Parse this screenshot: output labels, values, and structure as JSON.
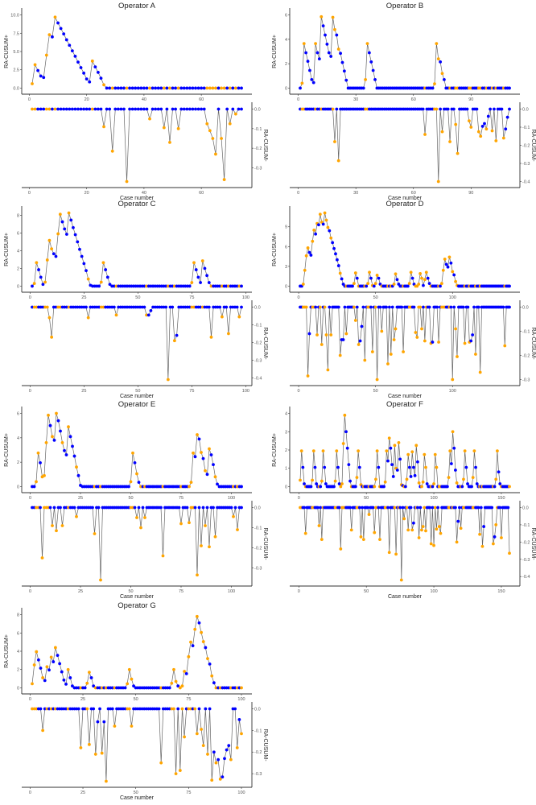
{
  "chart_data": [
    {
      "type": "line",
      "title": "Operator A",
      "xlabel": "Case number",
      "ylabel_upper": "RA-CUSUM+",
      "ylabel_lower": "RA-CUSUM-",
      "n_cases": 74,
      "xticks": [
        0,
        20,
        40,
        60
      ],
      "upper_yticks": [
        "0.0",
        "2.5",
        "5.0",
        "7.5",
        "10.0"
      ],
      "lower_yticks": [
        "0.0",
        "-0.1",
        "-0.2",
        "-0.3"
      ],
      "upper_nonzero": {
        "1": 0.6,
        "2": 3.2,
        "3": 2.4,
        "4": 1.65,
        "5": 1.45,
        "6": 4.5,
        "7": 7.3,
        "8": 7.0,
        "9": 9.7,
        "10": 8.9,
        "11": 8.15,
        "12": 7.4,
        "13": 6.6,
        "14": 5.85,
        "15": 5.1,
        "16": 4.35,
        "17": 3.55,
        "18": 2.8,
        "19": 2.05,
        "20": 1.25,
        "21": 0.85,
        "22": 3.7,
        "23": 2.9,
        "24": 2.15,
        "25": 1.35,
        "26": 0.45
      },
      "lower_nonzero": {
        "26": -0.09,
        "29": -0.215,
        "34": -0.37,
        "42": -0.05,
        "47": -0.095,
        "49": -0.17,
        "52": -0.1,
        "62": -0.075,
        "63": -0.11,
        "64": -0.15,
        "65": -0.23,
        "67": -0.15,
        "68": -0.36,
        "70": -0.075,
        "72": -0.025
      }
    },
    {
      "type": "line",
      "title": "Operator B",
      "xlabel": "Case number",
      "ylabel_upper": "RA-CUSUM+",
      "ylabel_lower": "RA-CUSUM-",
      "n_cases": 110,
      "xticks": [
        0,
        30,
        60,
        90
      ],
      "upper_yticks": [
        "0",
        "2",
        "4",
        "6"
      ],
      "lower_yticks": [
        "0.0",
        "-0.1",
        "-0.2",
        "-0.3",
        "-0.4"
      ],
      "upper_nonzero": {
        "2": 0.4,
        "3": 3.65,
        "4": 2.9,
        "5": 2.2,
        "6": 1.45,
        "7": 0.7,
        "8": 0.45,
        "9": 3.65,
        "10": 2.9,
        "11": 2.4,
        "12": 5.85,
        "13": 5.1,
        "14": 4.35,
        "15": 3.6,
        "16": 2.9,
        "17": 2.6,
        "18": 5.8,
        "19": 4.8,
        "20": 4.35,
        "21": 3.2,
        "22": 2.85,
        "23": 2.1,
        "24": 1.4,
        "25": 0.65,
        "35": 0.7,
        "36": 3.65,
        "37": 2.9,
        "38": 2.15,
        "39": 1.45,
        "40": 0.7,
        "71": 0.35,
        "72": 3.65,
        "73": 2.4,
        "74": 2.15,
        "75": 1.2,
        "76": 0.7
      },
      "lower_nonzero": {
        "19": -0.18,
        "21": -0.285,
        "66": -0.14,
        "73": -0.4,
        "75": -0.125,
        "79": -0.18,
        "82": -0.085,
        "83": -0.245,
        "89": -0.065,
        "90": -0.1,
        "94": -0.125,
        "95": -0.15,
        "96": -0.095,
        "97": -0.08,
        "98": -0.11,
        "99": -0.04,
        "101": -0.12,
        "103": -0.175,
        "107": -0.16,
        "108": -0.11,
        "109": -0.045
      }
    },
    {
      "type": "line",
      "title": "Operator C",
      "xlabel": "Case number",
      "ylabel_upper": "RA-CUSUM+",
      "ylabel_lower": "RA-CUSUM-",
      "n_cases": 98,
      "xticks": [
        0,
        25,
        50,
        75,
        100
      ],
      "upper_yticks": [
        "0",
        "2",
        "4",
        "6",
        "8"
      ],
      "lower_yticks": [
        "0.0",
        "-0.1",
        "-0.2",
        "-0.3",
        "-0.4"
      ],
      "upper_nonzero": {
        "2": 0.3,
        "3": 2.65,
        "4": 1.85,
        "5": 1.0,
        "6": 0.2,
        "7": 0.45,
        "8": 2.95,
        "9": 5.15,
        "10": 4.2,
        "11": 3.65,
        "12": 3.35,
        "13": 5.9,
        "14": 8.1,
        "15": 7.25,
        "16": 6.45,
        "17": 5.85,
        "18": 8.25,
        "19": 7.45,
        "20": 6.6,
        "21": 5.8,
        "22": 5.0,
        "23": 4.15,
        "24": 3.35,
        "25": 2.55,
        "26": 1.75,
        "27": 0.8,
        "28": 0.1,
        "33": 0.45,
        "34": 2.65,
        "35": 1.85,
        "36": 1.0,
        "37": 0.2,
        "75": 0.4,
        "76": 2.65,
        "77": 1.85,
        "78": 1.0,
        "79": 0.4,
        "80": 2.85,
        "81": 2.0,
        "82": 1.2,
        "83": 0.4
      },
      "lower_nonzero": {
        "9": -0.06,
        "10": -0.17,
        "27": -0.06,
        "40": -0.045,
        "54": -0.045,
        "55": -0.045,
        "56": -0.02,
        "64": -0.41,
        "67": -0.19,
        "68": -0.16,
        "84": -0.17,
        "89": -0.055,
        "92": -0.15,
        "97": -0.055
      }
    },
    {
      "type": "line",
      "title": "Operator D",
      "xlabel": "Case number",
      "ylabel_upper": "RA-CUSUM+",
      "ylabel_lower": "RA-CUSUM-",
      "n_cases": 137,
      "xticks": [
        0,
        50,
        100
      ],
      "upper_yticks": [
        "0",
        "3",
        "6",
        "9"
      ],
      "lower_yticks": [
        "0.0",
        "-0.1",
        "-0.2",
        "-0.3"
      ],
      "upper_nonzero": {
        "3": 0.3,
        "4": 2.4,
        "5": 4.6,
        "6": 5.8,
        "7": 5.1,
        "8": 4.7,
        "9": 6.8,
        "10": 8.5,
        "11": 7.9,
        "12": 9.5,
        "13": 9.3,
        "14": 10.9,
        "15": 9.7,
        "16": 9.4,
        "17": 11.1,
        "18": 10.0,
        "19": 8.9,
        "20": 8.4,
        "21": 7.3,
        "22": 6.6,
        "23": 5.7,
        "24": 4.9,
        "25": 4.0,
        "26": 3.1,
        "27": 1.95,
        "28": 1.1,
        "29": 0.3,
        "36": 0.4,
        "37": 2.0,
        "38": 1.2,
        "45": 0.4,
        "46": 2.1,
        "47": 1.2,
        "48": 0.1,
        "50": 0.4,
        "51": 1.65,
        "52": 1.2,
        "53": 0.3,
        "62": 0.3,
        "63": 1.85,
        "64": 1.0,
        "65": 0.3,
        "72": 0.4,
        "73": 2.1,
        "74": 1.2,
        "75": 0.3,
        "78": 0.3,
        "79": 1.9,
        "80": 1.2,
        "81": 0.1,
        "82": 1.0,
        "83": 2.1,
        "84": 1.2,
        "85": 0.4,
        "93": 0.4,
        "94": 2.4,
        "95": 4.1,
        "96": 3.3,
        "97": 2.9,
        "98": 4.4,
        "99": 3.5,
        "100": 2.2,
        "101": 1.7,
        "102": 0.7,
        "103": 0.1
      },
      "lower_nonzero": {
        "6": -0.285,
        "7": -0.11,
        "12": -0.115,
        "15": -0.155,
        "18": -0.115,
        "19": -0.26,
        "21": -0.115,
        "27": -0.2,
        "28": -0.135,
        "29": -0.135,
        "31": -0.11,
        "37": -0.055,
        "39": -0.155,
        "40": -0.14,
        "41": -0.08,
        "43": -0.22,
        "48": -0.185,
        "51": -0.3,
        "54": -0.1,
        "58": -0.235,
        "60": -0.195,
        "62": -0.135,
        "63": -0.09,
        "68": -0.185,
        "76": -0.105,
        "77": -0.125,
        "80": -0.09,
        "82": -0.14,
        "86": -0.15,
        "87": -0.145,
        "91": -0.145,
        "100": -0.3,
        "102": -0.09,
        "103": -0.205,
        "108": -0.15,
        "111": -0.145,
        "112": -0.14,
        "113": -0.115,
        "115": -0.195,
        "118": -0.27,
        "134": -0.16
      }
    },
    {
      "type": "line",
      "title": "Operator E",
      "xlabel": "Case number",
      "ylabel_upper": "RA-CUSUM+",
      "ylabel_lower": "RA-CUSUM-",
      "n_cases": 105,
      "xticks": [
        0,
        25,
        50,
        75,
        100
      ],
      "upper_yticks": [
        "0",
        "2",
        "4",
        "6"
      ],
      "lower_yticks": [
        "0.0",
        "-0.1",
        "-0.2",
        "-0.3"
      ],
      "upper_nonzero": {
        "3": 0.4,
        "4": 2.75,
        "5": 1.95,
        "6": 0.8,
        "7": 0.9,
        "8": 3.6,
        "9": 5.85,
        "10": 5.0,
        "11": 4.1,
        "12": 3.8,
        "13": 6.0,
        "14": 5.4,
        "15": 4.55,
        "16": 3.6,
        "17": 2.95,
        "18": 2.6,
        "19": 4.9,
        "20": 4.1,
        "21": 3.3,
        "22": 2.5,
        "23": 1.6,
        "24": 0.9,
        "25": 0.1,
        "50": 0.4,
        "51": 2.75,
        "52": 1.95,
        "53": 1.05,
        "54": 0.35,
        "80": 0.35,
        "81": 2.75,
        "82": 2.45,
        "83": 4.25,
        "84": 3.9,
        "85": 2.8,
        "86": 2.3,
        "87": 1.3,
        "88": 1.0,
        "89": 3.1,
        "90": 2.6,
        "91": 1.8,
        "92": 0.8,
        "93": 0.2
      },
      "lower_nonzero": {
        "6": -0.25,
        "11": -0.09,
        "13": -0.115,
        "16": -0.09,
        "23": -0.045,
        "32": -0.13,
        "35": -0.36,
        "53": -0.05,
        "55": -0.1,
        "57": -0.05,
        "66": -0.24,
        "75": -0.08,
        "79": -0.075,
        "83": -0.335,
        "85": -0.19,
        "87": -0.09,
        "89": -0.195,
        "92": -0.145,
        "101": -0.045,
        "103": -0.11
      }
    },
    {
      "type": "line",
      "title": "Operator F",
      "xlabel": "Case number",
      "ylabel_upper": "RA-CUSUM+",
      "ylabel_lower": "RA-CUSUM-",
      "n_cases": 156,
      "xticks": [
        0,
        50,
        100,
        150
      ],
      "upper_yticks": [
        "0",
        "1",
        "2",
        "3",
        "4"
      ],
      "lower_yticks": [
        "0.0",
        "-0.1",
        "-0.2",
        "-0.3",
        "-0.4"
      ],
      "upper_nonzero": {
        "1": 0.35,
        "2": 1.95,
        "3": 1.05,
        "4": 0.15,
        "10": 0.35,
        "11": 1.95,
        "12": 1.05,
        "13": 0.15,
        "17": 0.3,
        "18": 1.95,
        "19": 1.05,
        "20": 0.15,
        "27": 0.3,
        "28": 1.95,
        "29": 1.05,
        "30": 0.15,
        "32": 0.15,
        "33": 2.35,
        "34": 3.9,
        "35": 3.0,
        "36": 2.1,
        "37": 1.2,
        "38": 0.3,
        "43": 0.5,
        "44": 1.95,
        "45": 1.05,
        "46": 0.1,
        "57": 0.4,
        "58": 1.95,
        "59": 1.05,
        "64": 0.25,
        "65": 1.95,
        "66": 1.4,
        "67": 2.65,
        "68": 2.1,
        "69": 1.2,
        "70": 0.55,
        "71": 2.25,
        "72": 1.0,
        "73": 0.9,
        "74": 2.4,
        "75": 1.5,
        "76": 0.1,
        "77": 0.05,
        "80": 0.4,
        "81": 1.75,
        "82": 1.05,
        "83": 0.55,
        "84": 1.9,
        "85": 1.05,
        "86": 0.6,
        "87": 2.25,
        "88": 1.35,
        "89": 0.2,
        "92": 0.25,
        "93": 1.75,
        "94": 1.05,
        "95": 0.15,
        "100": 0.15,
        "101": 1.75,
        "102": 1.05,
        "111": 0.5,
        "112": 1.95,
        "113": 1.25,
        "114": 3.0,
        "115": 2.1,
        "116": 0.9,
        "117": 0.2,
        "122": 0.4,
        "123": 1.95,
        "124": 1.05,
        "125": 0.15,
        "129": 0.5,
        "130": 1.95,
        "131": 1.05,
        "132": 0.15,
        "146": 0.4,
        "147": 1.95,
        "148": 0.8,
        "149": 0.15
      },
      "lower_nonzero": {
        "5": -0.15,
        "15": -0.105,
        "17": -0.185,
        "31": -0.24,
        "39": -0.13,
        "46": -0.17,
        "48": -0.185,
        "52": -0.04,
        "56": -0.145,
        "60": -0.185,
        "67": -0.26,
        "72": -0.27,
        "76": -0.42,
        "78": -0.065,
        "81": -0.13,
        "84": -0.13,
        "85": -0.09,
        "89": -0.175,
        "91": -0.13,
        "92": -0.11,
        "94": -0.135,
        "98": -0.21,
        "100": -0.22,
        "102": -0.125,
        "104": -0.11,
        "105": -0.15,
        "117": -0.2,
        "118": -0.08,
        "120": -0.12,
        "134": -0.155,
        "136": -0.225,
        "137": -0.11,
        "144": -0.21,
        "145": -0.17,
        "146": -0.1,
        "150": -0.175,
        "156": -0.265
      }
    },
    {
      "type": "line",
      "title": "Operator G",
      "xlabel": "Case number",
      "ylabel_upper": "RA-CUSUM+",
      "ylabel_lower": "RA-CUSUM-",
      "n_cases": 100,
      "xticks": [
        0,
        25,
        50,
        75,
        100
      ],
      "upper_yticks": [
        "0",
        "2",
        "4",
        "6",
        "8"
      ],
      "lower_yticks": [
        "0.0",
        "-0.1",
        "-0.2",
        "-0.3"
      ],
      "upper_nonzero": {
        "1": 0.45,
        "2": 2.5,
        "3": 3.95,
        "4": 3.05,
        "5": 2.15,
        "6": 1.1,
        "7": 0.8,
        "8": 2.3,
        "9": 1.95,
        "10": 3.35,
        "11": 2.85,
        "12": 4.4,
        "13": 3.55,
        "14": 2.65,
        "15": 1.75,
        "16": 0.85,
        "17": 0.4,
        "18": 2.0,
        "19": 1.1,
        "20": 0.2,
        "27": 0.5,
        "28": 1.7,
        "29": 1.1,
        "30": 0.2,
        "46": 0.45,
        "47": 2.0,
        "48": 0.95,
        "49": 0.2,
        "67": 0.5,
        "68": 2.0,
        "69": 0.7,
        "70": 0.2,
        "72": 0.2,
        "73": 1.8,
        "74": 1.55,
        "75": 3.4,
        "76": 5.0,
        "77": 4.6,
        "78": 6.4,
        "79": 7.8,
        "80": 7.1,
        "81": 6.05,
        "82": 5.05,
        "83": 4.4,
        "84": 3.2,
        "85": 2.6,
        "86": 1.3,
        "87": 0.55
      },
      "lower_nonzero": {
        "6": -0.1,
        "24": -0.18,
        "28": -0.165,
        "31": -0.21,
        "32": -0.06,
        "34": -0.205,
        "35": -0.06,
        "36": -0.335,
        "40": -0.08,
        "48": -0.08,
        "62": -0.25,
        "69": -0.3,
        "71": -0.285,
        "73": -0.13,
        "79": -0.115,
        "81": -0.095,
        "82": -0.17,
        "84": -0.21,
        "86": -0.33,
        "87": -0.2,
        "88": -0.25,
        "89": -0.235,
        "90": -0.325,
        "91": -0.315,
        "92": -0.23,
        "93": -0.19,
        "94": -0.17,
        "95": -0.235,
        "98": -0.18,
        "99": -0.05,
        "100": -0.115
      }
    }
  ],
  "colors": {
    "no_event_point": "#0000ff",
    "event_point": "#ffa500",
    "line": "#666666",
    "axis": "#333333"
  }
}
